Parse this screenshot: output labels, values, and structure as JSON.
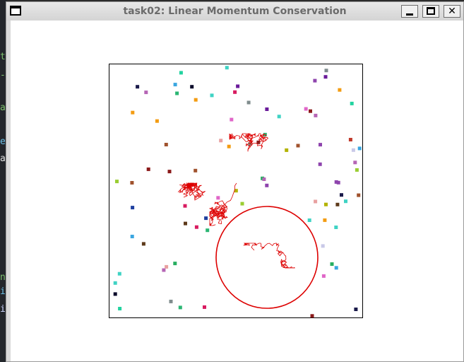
{
  "window": {
    "title": "task02: Linear Momentum Conservation",
    "icon": "window-menu-icon",
    "controls": [
      {
        "name": "minimize",
        "icon": "minimize-icon"
      },
      {
        "name": "maximize",
        "icon": "maximize-icon"
      },
      {
        "name": "close",
        "icon": "close-icon",
        "glyph": "✕"
      }
    ]
  },
  "background_terminal": {
    "fragments": [
      {
        "text": "t",
        "color": "#7ec16e"
      },
      {
        "text": "-",
        "color": "#7ec16e"
      },
      {
        "text": "a",
        "color": "#7ec16e"
      },
      {
        "text": "e",
        "color": "#6fc2e8"
      },
      {
        "text": "a",
        "color": "#e0e0e0"
      },
      {
        "text": "n",
        "color": "#7ec16e"
      },
      {
        "text": "i",
        "color": "#6fc2e8"
      },
      {
        "text": "i",
        "color": "#cfd8ff"
      }
    ]
  },
  "simulation": {
    "box_color": "#000000",
    "large_particle": {
      "color": "#dd0000",
      "radius": 72
    },
    "trail_color": "#dd0000",
    "particle_count": 86,
    "particle_palette": [
      "#1f3f9f",
      "#d81b60",
      "#2bb673",
      "#8e44ad",
      "#c0392b",
      "#3fd3c4",
      "#9acd32",
      "#e066c8",
      "#5d3a1a",
      "#1a1a4a",
      "#7f8c8d",
      "#f39c12",
      "#3aa6e0",
      "#b565b5",
      "#27ae60",
      "#e74c3c",
      "#c9c9e8",
      "#a0522d",
      "#22d3a0",
      "#e8a0a0",
      "#6a1b9a",
      "#b3b300",
      "#0a0a2a",
      "#8b1a1a"
    ]
  }
}
